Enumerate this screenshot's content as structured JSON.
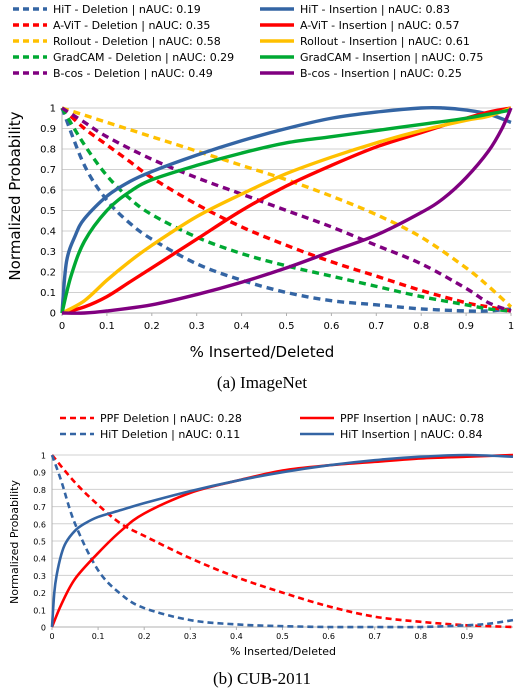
{
  "chart_data": [
    {
      "type": "line",
      "caption": "(a) ImageNet",
      "xlabel": "% Inserted/Deleted",
      "ylabel": "Normalized Probability",
      "xlim": [
        0,
        1
      ],
      "ylim": [
        0,
        1
      ],
      "xticks": [
        "0",
        "0.1",
        "0.2",
        "0.3",
        "0.4",
        "0.5",
        "0.6",
        "0.7",
        "0.8",
        "0.9",
        "1"
      ],
      "yticks": [
        "0",
        "0.1",
        "0.2",
        "0.3",
        "0.4",
        "0.5",
        "0.6",
        "0.7",
        "0.8",
        "0.9",
        "1"
      ],
      "grid": "horizontal",
      "legend": "top, two columns",
      "series": [
        {
          "name": "HiT - Deletion  | nAUC: 0.19",
          "color": "#3465a4",
          "dashed": true,
          "x": [
            0,
            0.05,
            0.1,
            0.15,
            0.2,
            0.3,
            0.4,
            0.5,
            0.6,
            0.7,
            0.8,
            0.9,
            0.95,
            1
          ],
          "y": [
            1,
            0.72,
            0.55,
            0.44,
            0.36,
            0.24,
            0.16,
            0.1,
            0.06,
            0.04,
            0.02,
            0.01,
            0.01,
            0.02
          ]
        },
        {
          "name": "A-ViT - Deletion  | nAUC: 0.35",
          "color": "#ff0000",
          "dashed": true,
          "x": [
            0,
            0.05,
            0.1,
            0.15,
            0.2,
            0.3,
            0.4,
            0.5,
            0.6,
            0.7,
            0.8,
            0.9,
            0.95,
            1
          ],
          "y": [
            1,
            0.9,
            0.82,
            0.74,
            0.66,
            0.53,
            0.42,
            0.33,
            0.25,
            0.18,
            0.11,
            0.05,
            0.03,
            0.01
          ]
        },
        {
          "name": "Rollout - Deletion  | nAUC: 0.58",
          "color": "#ffc000",
          "dashed": true,
          "x": [
            0,
            0.1,
            0.2,
            0.3,
            0.4,
            0.5,
            0.6,
            0.7,
            0.8,
            0.9,
            0.95,
            1
          ],
          "y": [
            1,
            0.93,
            0.86,
            0.79,
            0.72,
            0.65,
            0.57,
            0.48,
            0.37,
            0.22,
            0.13,
            0.03
          ]
        },
        {
          "name": "GradCAM - Deletion  | nAUC: 0.29",
          "color": "#00a933",
          "dashed": true,
          "x": [
            0,
            0.05,
            0.1,
            0.15,
            0.2,
            0.3,
            0.4,
            0.5,
            0.6,
            0.7,
            0.8,
            0.9,
            0.95,
            1
          ],
          "y": [
            1,
            0.82,
            0.67,
            0.56,
            0.48,
            0.37,
            0.29,
            0.23,
            0.18,
            0.13,
            0.08,
            0.04,
            0.02,
            0.01
          ]
        },
        {
          "name": "B-cos - Deletion  | nAUC: 0.49",
          "color": "#800080",
          "dashed": true,
          "x": [
            0,
            0.05,
            0.1,
            0.2,
            0.3,
            0.4,
            0.5,
            0.6,
            0.7,
            0.8,
            0.9,
            0.95,
            1
          ],
          "y": [
            1,
            0.93,
            0.86,
            0.75,
            0.66,
            0.58,
            0.5,
            0.42,
            0.33,
            0.24,
            0.12,
            0.05,
            0.01
          ]
        },
        {
          "name": "HiT - Insertion  | nAUC: 0.83",
          "color": "#3465a4",
          "dashed": false,
          "x": [
            0,
            0.01,
            0.03,
            0.05,
            0.1,
            0.15,
            0.2,
            0.3,
            0.4,
            0.5,
            0.6,
            0.7,
            0.8,
            0.85,
            0.9,
            0.95,
            1
          ],
          "y": [
            0,
            0.25,
            0.38,
            0.46,
            0.57,
            0.64,
            0.69,
            0.77,
            0.84,
            0.9,
            0.95,
            0.98,
            1,
            1,
            0.99,
            0.97,
            0.93
          ]
        },
        {
          "name": "A-ViT - Insertion  | nAUC: 0.57",
          "color": "#ff0000",
          "dashed": false,
          "x": [
            0,
            0.05,
            0.1,
            0.15,
            0.2,
            0.3,
            0.4,
            0.5,
            0.6,
            0.7,
            0.8,
            0.9,
            0.95,
            1
          ],
          "y": [
            0,
            0.03,
            0.08,
            0.15,
            0.22,
            0.36,
            0.5,
            0.62,
            0.72,
            0.81,
            0.88,
            0.95,
            0.98,
            1
          ]
        },
        {
          "name": "Rollout - Insertion  | nAUC: 0.61",
          "color": "#ffc000",
          "dashed": false,
          "x": [
            0,
            0.05,
            0.1,
            0.15,
            0.2,
            0.3,
            0.4,
            0.5,
            0.6,
            0.7,
            0.8,
            0.9,
            0.95,
            1
          ],
          "y": [
            0,
            0.06,
            0.16,
            0.25,
            0.33,
            0.47,
            0.58,
            0.68,
            0.76,
            0.83,
            0.89,
            0.94,
            0.96,
            1
          ]
        },
        {
          "name": "GradCAM - Insertion  | nAUC: 0.75",
          "color": "#00a933",
          "dashed": false,
          "x": [
            0,
            0.02,
            0.05,
            0.1,
            0.15,
            0.2,
            0.3,
            0.4,
            0.5,
            0.6,
            0.7,
            0.8,
            0.9,
            0.95,
            1
          ],
          "y": [
            0,
            0.18,
            0.35,
            0.5,
            0.59,
            0.65,
            0.72,
            0.78,
            0.83,
            0.86,
            0.89,
            0.92,
            0.95,
            0.97,
            0.99
          ]
        },
        {
          "name": "B-cos - Insertion  | nAUC: 0.25",
          "color": "#800080",
          "dashed": false,
          "x": [
            0,
            0.05,
            0.1,
            0.2,
            0.3,
            0.4,
            0.5,
            0.6,
            0.7,
            0.8,
            0.85,
            0.9,
            0.95,
            0.98,
            1
          ],
          "y": [
            0,
            0,
            0.01,
            0.04,
            0.09,
            0.15,
            0.22,
            0.3,
            0.38,
            0.49,
            0.56,
            0.66,
            0.79,
            0.9,
            1
          ]
        }
      ]
    },
    {
      "type": "line",
      "caption": "(b) CUB-2011",
      "xlabel": "% Inserted/Deleted",
      "ylabel": "Normalized Probability",
      "xlim": [
        0,
        1
      ],
      "ylim": [
        0,
        1
      ],
      "xticks": [
        "0",
        "0.1",
        "0.2",
        "0.3",
        "0.4",
        "0.5",
        "0.6",
        "0.7",
        "0.8",
        "0.9"
      ],
      "yticks": [
        "0",
        "0.1",
        "0.2",
        "0.3",
        "0.4",
        "0.5",
        "0.6",
        "0.7",
        "0.8",
        "0.9",
        "1"
      ],
      "grid": "horizontal",
      "legend": "top, two columns",
      "series": [
        {
          "name": "PPF Deletion | nAUC: 0.28",
          "color": "#ff0000",
          "dashed": true,
          "x": [
            0,
            0.05,
            0.1,
            0.15,
            0.2,
            0.3,
            0.4,
            0.5,
            0.6,
            0.7,
            0.8,
            0.9,
            1
          ],
          "y": [
            1,
            0.84,
            0.71,
            0.6,
            0.53,
            0.4,
            0.29,
            0.2,
            0.12,
            0.06,
            0.03,
            0.01,
            0
          ]
        },
        {
          "name": "HiT Deletion | nAUC: 0.11",
          "color": "#3465a4",
          "dashed": true,
          "x": [
            0,
            0.02,
            0.05,
            0.1,
            0.15,
            0.2,
            0.3,
            0.4,
            0.5,
            0.6,
            0.7,
            0.8,
            0.9,
            0.95,
            1
          ],
          "y": [
            1,
            0.85,
            0.6,
            0.33,
            0.19,
            0.11,
            0.04,
            0.015,
            0.005,
            0,
            0,
            0,
            0.01,
            0.02,
            0.04
          ]
        },
        {
          "name": "PPF Insertion | nAUC: 0.78",
          "color": "#ff0000",
          "dashed": false,
          "x": [
            0,
            0.02,
            0.05,
            0.1,
            0.15,
            0.2,
            0.3,
            0.4,
            0.5,
            0.6,
            0.7,
            0.8,
            0.9,
            1
          ],
          "y": [
            0,
            0.13,
            0.28,
            0.43,
            0.56,
            0.66,
            0.78,
            0.85,
            0.91,
            0.94,
            0.96,
            0.98,
            0.99,
            1
          ]
        },
        {
          "name": "HiT Insertion | nAUC: 0.84",
          "color": "#3465a4",
          "dashed": false,
          "x": [
            0,
            0.005,
            0.01,
            0.02,
            0.03,
            0.05,
            0.07,
            0.1,
            0.15,
            0.2,
            0.3,
            0.4,
            0.5,
            0.6,
            0.7,
            0.8,
            0.9,
            1
          ],
          "y": [
            0,
            0.2,
            0.3,
            0.42,
            0.49,
            0.56,
            0.6,
            0.64,
            0.68,
            0.72,
            0.79,
            0.85,
            0.9,
            0.94,
            0.97,
            0.99,
            1,
            0.99
          ]
        }
      ]
    }
  ]
}
